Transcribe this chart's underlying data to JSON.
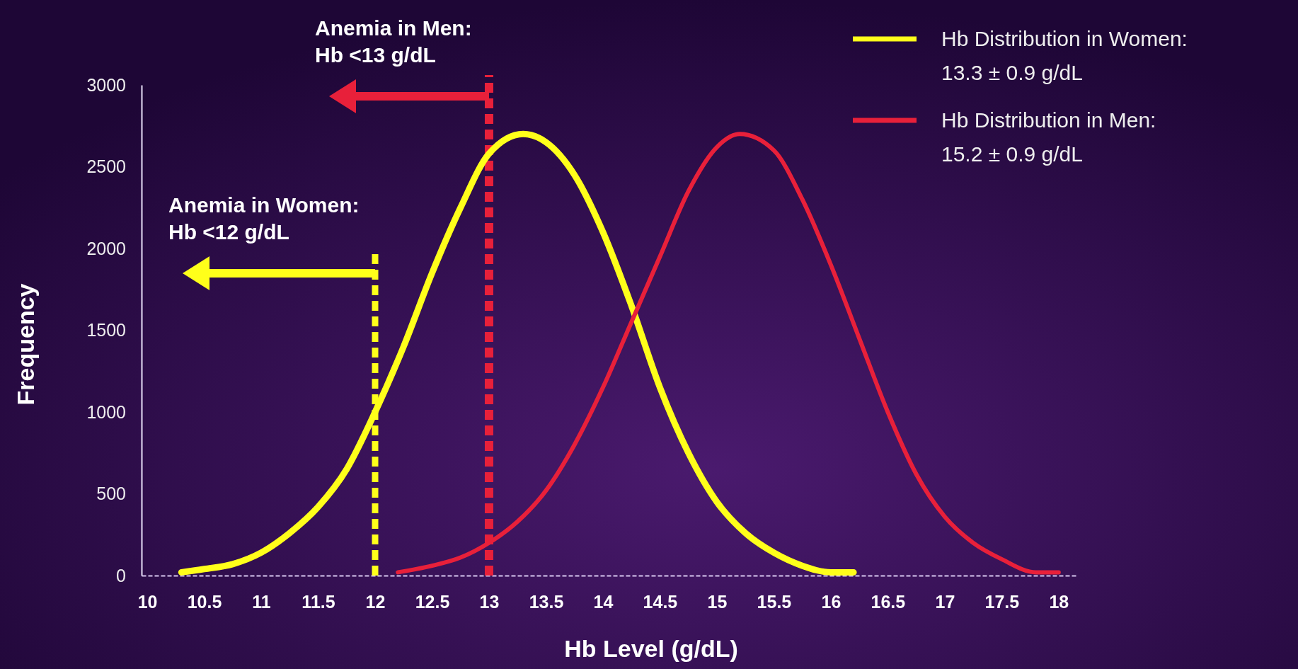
{
  "chart_data": {
    "type": "line",
    "xlabel": "Hb Level (g/dL)",
    "ylabel": "Frequency",
    "xlim": [
      9.95,
      18.15
    ],
    "xticks": [
      10,
      10.5,
      11,
      11.5,
      12,
      12.5,
      13,
      13.5,
      14,
      14.5,
      15,
      15.5,
      16,
      16.5,
      17,
      17.5,
      18
    ],
    "ylim": [
      0,
      3000
    ],
    "yticks": [
      0,
      500,
      1000,
      1500,
      2000,
      2500,
      3000
    ],
    "legend": "top right",
    "line_style": "solid",
    "marker": "none",
    "series": [
      {
        "name": "Hb Distribution in Women:\n13.3 ± 0.9 g/dL",
        "color": "#ffff1a",
        "x": [
          10.3,
          10.5,
          10.75,
          11,
          11.25,
          11.5,
          11.75,
          12,
          12.25,
          12.5,
          12.75,
          13,
          13.3,
          13.5,
          13.75,
          14,
          14.25,
          14.5,
          14.75,
          15,
          15.25,
          15.5,
          15.75,
          16,
          16.2
        ],
        "values": [
          20,
          40,
          70,
          140,
          260,
          420,
          650,
          1000,
          1400,
          1850,
          2250,
          2580,
          2700,
          2650,
          2450,
          2100,
          1650,
          1150,
          750,
          450,
          260,
          140,
          60,
          20,
          20
        ]
      },
      {
        "name": "Hb Distribution in Men:\n15.2 ± 0.9 g/dL",
        "color": "#e8203a",
        "x": [
          12.2,
          12.5,
          12.75,
          13,
          13.25,
          13.5,
          13.75,
          14,
          14.25,
          14.5,
          14.75,
          15,
          15.2,
          15.5,
          15.75,
          16,
          16.25,
          16.5,
          16.75,
          17,
          17.25,
          17.5,
          17.8,
          18
        ],
        "values": [
          20,
          60,
          110,
          200,
          330,
          520,
          800,
          1150,
          1550,
          1950,
          2350,
          2620,
          2700,
          2600,
          2300,
          1900,
          1450,
          1000,
          620,
          360,
          200,
          100,
          20,
          20
        ]
      }
    ],
    "ref_lines": [
      {
        "axis": "x",
        "value": 12,
        "label": "Anemia in Women:\nHb <12 g/dL",
        "color": "#ffff1a",
        "line_style": "dashed"
      },
      {
        "axis": "x",
        "value": 13,
        "label": "Anemia in Men:\nHb <13 g/dL",
        "color": "#e8203a",
        "line_style": "dashed"
      }
    ]
  }
}
